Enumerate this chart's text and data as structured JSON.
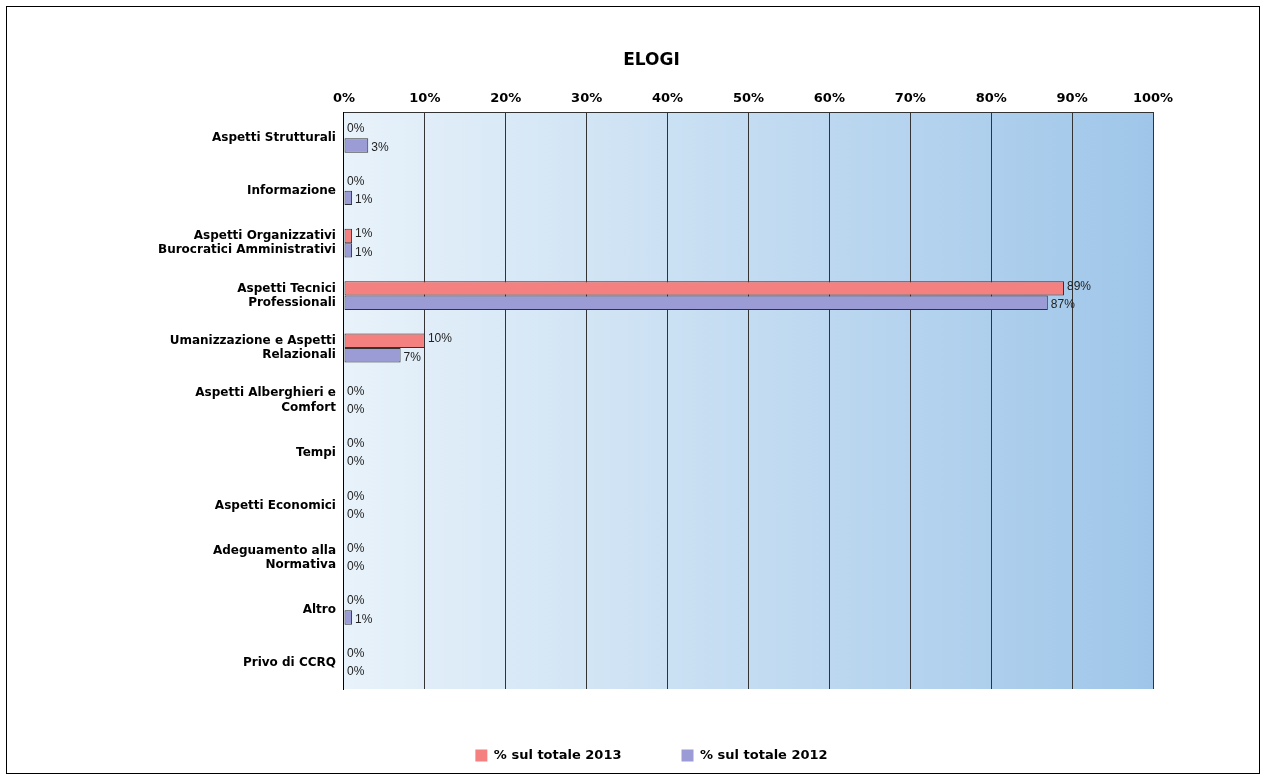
{
  "chart_data": {
    "type": "bar",
    "orientation": "horizontal",
    "title": "ELOGI",
    "categories": [
      "Aspetti Strutturali",
      "Informazione",
      "Aspetti Organizzativi Burocratici Amministrativi",
      "Aspetti Tecnici Professionali",
      "Umanizzazione e Aspetti Relazionali",
      "Aspetti Alberghieri e Comfort",
      "Tempi",
      "Aspetti Economici",
      "Adeguamento alla Normativa",
      "Altro",
      "Privo di CCRQ"
    ],
    "series": [
      {
        "name": "% sul totale 2013",
        "color": "#f4817f",
        "values": [
          0,
          0,
          1,
          89,
          10,
          0,
          0,
          0,
          0,
          0,
          0
        ],
        "value_labels": [
          "0%",
          "0%",
          "1%",
          "89%",
          "10%",
          "0%",
          "0%",
          "0%",
          "0%",
          "0%",
          "0%"
        ]
      },
      {
        "name": "% sul totale 2012",
        "color": "#9b9bd6",
        "values": [
          3,
          1,
          1,
          87,
          7,
          0,
          0,
          0,
          0,
          1,
          0
        ],
        "value_labels": [
          "3%",
          "1%",
          "1%",
          "87%",
          "7%",
          "0%",
          "0%",
          "0%",
          "0%",
          "1%",
          "0%"
        ]
      }
    ],
    "xlim": [
      0,
      100
    ],
    "xticks": [
      {
        "value": 0,
        "label": "0%"
      },
      {
        "value": 10,
        "label": "10%"
      },
      {
        "value": 20,
        "label": "20%"
      },
      {
        "value": 30,
        "label": "30%"
      },
      {
        "value": 40,
        "label": "40%"
      },
      {
        "value": 50,
        "label": "50%"
      },
      {
        "value": 60,
        "label": "60%"
      },
      {
        "value": 70,
        "label": "70%"
      },
      {
        "value": 80,
        "label": "80%"
      },
      {
        "value": 90,
        "label": "90%"
      },
      {
        "value": 100,
        "label": "100%"
      }
    ],
    "grid": "x",
    "legend": "bottom"
  }
}
